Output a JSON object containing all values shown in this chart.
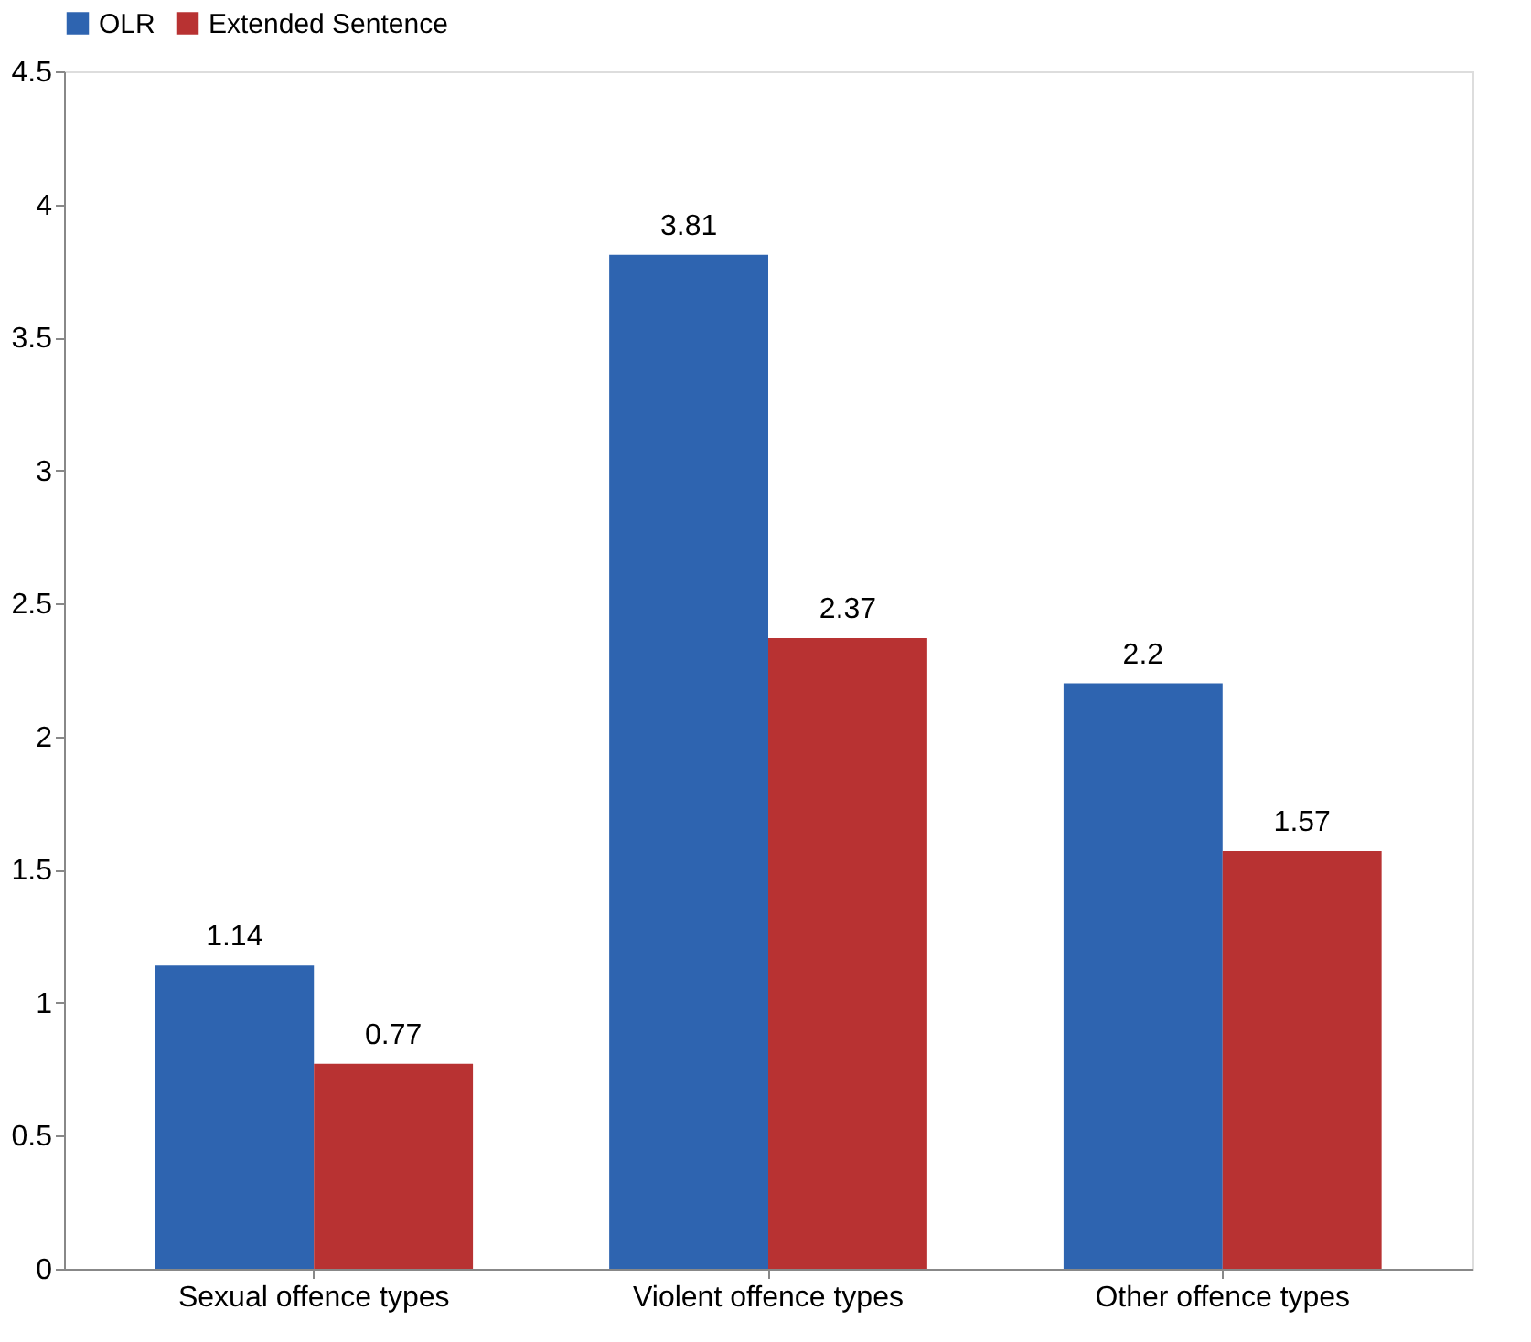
{
  "chart_data": {
    "type": "bar",
    "categories": [
      "Sexual offence types",
      "Violent offence types",
      "Other offence types"
    ],
    "series": [
      {
        "name": "OLR",
        "color": "#2e64b0",
        "values": [
          1.14,
          3.81,
          2.2
        ]
      },
      {
        "name": "Extended Sentence",
        "color": "#b83232",
        "values": [
          0.77,
          2.37,
          1.57
        ]
      }
    ],
    "ylim": [
      0,
      4.5
    ],
    "yticks": [
      0,
      0.5,
      1,
      1.5,
      2,
      2.5,
      3,
      3.5,
      4,
      4.5
    ],
    "grid": false,
    "legend": "top",
    "data_labels": true
  }
}
